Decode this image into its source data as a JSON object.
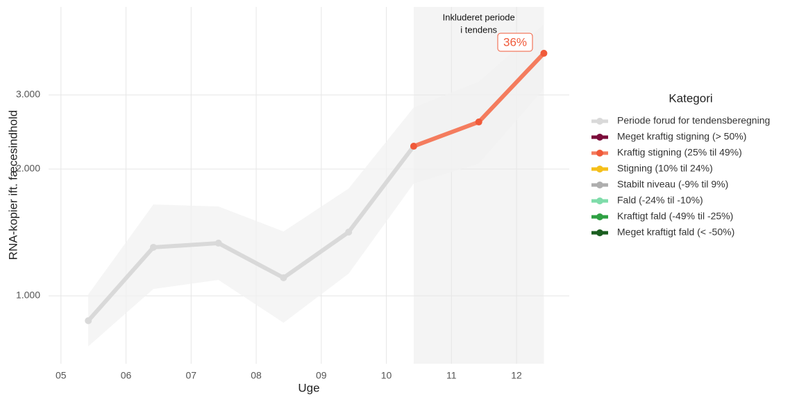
{
  "chart_data": {
    "type": "line",
    "x_label": "Uge",
    "y_label": "RNA-kopier ift. fæcesindhold",
    "legend_title": "Kategori",
    "log_y": true,
    "grid": true,
    "x": [
      5.42,
      6.42,
      7.42,
      8.42,
      9.42,
      10.42,
      11.42,
      12.42
    ],
    "series": [
      {
        "name": "Periode forud for tendensberegning",
        "color": "#d9d9d9",
        "values": [
          873,
          1304,
          1334,
          1104,
          1417,
          2266,
          null,
          null
        ]
      },
      {
        "name": "Meget kraftig stigning (> 50%)",
        "color": "#7b0c3a",
        "values": [
          null,
          null,
          null,
          null,
          null,
          null,
          null,
          null
        ]
      },
      {
        "name": "Kraftig stigning (25% til 49%)",
        "color": "#f47c5e",
        "values": [
          null,
          null,
          null,
          null,
          null,
          2266,
          2587,
          3766
        ]
      },
      {
        "name": "Stigning (10% til 24%)",
        "color": "#f5bf1a",
        "values": [
          null,
          null,
          null,
          null,
          null,
          null,
          null,
          null
        ]
      },
      {
        "name": "Stabilt niveau (-9% til 9%)",
        "color": "#aeaeae",
        "values": [
          null,
          null,
          null,
          null,
          null,
          null,
          null,
          null
        ]
      },
      {
        "name": "Fald (-24% til -10%)",
        "color": "#7fdcaa",
        "values": [
          null,
          null,
          null,
          null,
          null,
          null,
          null,
          null
        ]
      },
      {
        "name": "Kraftigt fald (-49% til -25%)",
        "color": "#2ea043",
        "values": [
          null,
          null,
          null,
          null,
          null,
          null,
          null,
          null
        ]
      },
      {
        "name": "Meget kraftigt fald (< -50%)",
        "color": "#1b5e20",
        "values": [
          null,
          null,
          null,
          null,
          null,
          null,
          null,
          null
        ]
      }
    ],
    "band": {
      "lower": [
        759,
        1038,
        1091,
        863,
        1129,
        1847,
        2061,
        3100
      ],
      "upper": [
        1008,
        1648,
        1630,
        1422,
        1798,
        2801,
        3223,
        4414
      ],
      "color": "#f2f2f2"
    },
    "highlight_x": [
      10.42,
      12.42
    ],
    "highlight_label": [
      "Inkluderet periode",
      "i tendens"
    ],
    "trend_label": "36%",
    "xlim": [
      4.81,
      12.81
    ],
    "xticks": [
      {
        "value": 5,
        "label": "05"
      },
      {
        "value": 6,
        "label": "06"
      },
      {
        "value": 7,
        "label": "07"
      },
      {
        "value": 8,
        "label": "08"
      },
      {
        "value": 9,
        "label": "09"
      },
      10,
      11,
      12
    ],
    "ylim": [
      690,
      4852
    ],
    "yticks": [
      {
        "value": 1000,
        "label": "1.000"
      },
      {
        "value": 2000,
        "label": "2.000"
      },
      {
        "value": 3000,
        "label": "3.000"
      }
    ]
  }
}
